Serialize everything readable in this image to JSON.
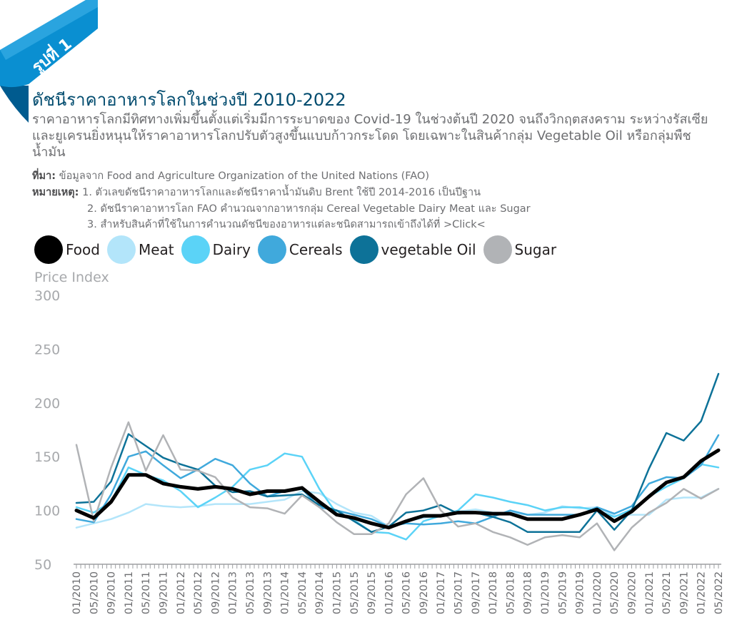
{
  "badge": "รูปที่ 1",
  "title": "ดัชนีราคาอาหารโลกในช่วงปี 2010-2022",
  "subtitle": "ราคาอาหารโลกมีทิศทางเพิ่มขึ้นตั้งแต่เริ่มมีการระบาดของ Covid-19 ในช่วงต้นปี 2020 จนถึงวิกฤตสงคราม ระหว่างรัสเซียและยูเครนยิ่งหนุนให้ราคาอาหารโลกปรับตัวสูงขึ้นแบบก้าวกระโดด โดยเฉพาะในสินค้ากลุ่ม Vegetable Oil หรือกลุ่มพืชน้ำมัน",
  "source_label": "ที่มา:",
  "source_text": " ข้อมูลจาก Food and Agriculture Organization of the United Nations (FAO)",
  "notes_label": "หมายเหตุ:",
  "note1": " 1. ตัวเลขดัชนีราคาอาหารโลกและดัชนีราคาน้ำมันดิบ Brent ใช้ปี 2014-2016 เป็นปีฐาน",
  "note2": "2. ดัชนีราคาอาหารโลก FAO คำนวณจากอาหารกลุ่ม Cereal Vegetable Dairy Meat และ Sugar",
  "note3": "3. สำหรับสินค้าที่ใช้ในการคำนวณดัชนีของอาหารแต่ละชนิดสามารถเข้าถึงได้ที่ >Click<",
  "colors": {
    "ribbon": "#0a8fd1",
    "ribbon_dark": "#006aa3",
    "axis": "#9d9fa2"
  },
  "chart_data": {
    "type": "line",
    "ylabel": "Price Index",
    "ylim": [
      50,
      300
    ],
    "yticks": [
      50,
      100,
      150,
      200,
      250,
      300
    ],
    "x": [
      "01/2010",
      "05/2010",
      "09/2010",
      "01/2011",
      "05/2011",
      "09/2011",
      "01/2012",
      "05/2012",
      "09/2012",
      "01/2013",
      "05/2013",
      "09/2013",
      "01/2014",
      "05/2014",
      "09/2014",
      "01/2015",
      "05/2015",
      "09/2015",
      "01/2016",
      "05/2016",
      "09/2016",
      "01/2017",
      "05/2017",
      "09/2017",
      "01/2018",
      "05/2018",
      "09/2018",
      "01/2019",
      "05/2019",
      "09/2019",
      "01/2020",
      "05/2020",
      "09/2020",
      "01/2021",
      "05/2021",
      "09/2021",
      "01/2022",
      "05/2022"
    ],
    "grid": false,
    "legend": "top",
    "series": [
      {
        "name": "Food",
        "color": "#000000",
        "width": 5,
        "values": [
          100,
          93,
          108,
          133,
          133,
          125,
          122,
          120,
          122,
          120,
          115,
          118,
          118,
          121,
          108,
          96,
          93,
          88,
          84,
          90,
          95,
          95,
          98,
          98,
          97,
          97,
          92,
          92,
          92,
          96,
          101,
          90,
          99,
          113,
          126,
          131,
          146,
          156
        ]
      },
      {
        "name": "Meat",
        "color": "#b3e5fa",
        "width": 2.5,
        "values": [
          84,
          88,
          92,
          98,
          106,
          104,
          103,
          104,
          106,
          106,
          106,
          108,
          110,
          118,
          116,
          106,
          98,
          95,
          85,
          90,
          93,
          96,
          99,
          101,
          98,
          98,
          96,
          98,
          104,
          102,
          103,
          95,
          96,
          96,
          110,
          112,
          112,
          120
        ]
      },
      {
        "name": "Dairy",
        "color": "#5bd3f7",
        "width": 2.5,
        "values": [
          103,
          98,
          108,
          140,
          133,
          128,
          118,
          103,
          112,
          122,
          138,
          142,
          153,
          150,
          120,
          97,
          91,
          80,
          79,
          73,
          90,
          95,
          100,
          115,
          112,
          108,
          105,
          100,
          103,
          103,
          100,
          94,
          101,
          113,
          122,
          130,
          143,
          140
        ]
      },
      {
        "name": "Cereals",
        "color": "#40a9dc",
        "width": 2.5,
        "values": [
          92,
          89,
          115,
          150,
          155,
          142,
          130,
          138,
          148,
          142,
          125,
          113,
          118,
          120,
          103,
          100,
          96,
          92,
          85,
          88,
          87,
          88,
          90,
          88,
          94,
          100,
          96,
          96,
          96,
          96,
          103,
          97,
          104,
          125,
          131,
          130,
          142,
          170
        ]
      },
      {
        "name": "vegetable Oil",
        "color": "#0d7298",
        "width": 2.5,
        "values": [
          107,
          108,
          127,
          171,
          160,
          149,
          143,
          138,
          123,
          117,
          118,
          113,
          114,
          115,
          105,
          100,
          90,
          80,
          85,
          98,
          100,
          105,
          97,
          98,
          94,
          89,
          80,
          80,
          80,
          80,
          100,
          82,
          100,
          139,
          172,
          165,
          183,
          227
        ]
      },
      {
        "name": "Sugar",
        "color": "#b1b3b6",
        "width": 2.5,
        "values": [
          161,
          90,
          140,
          182,
          137,
          170,
          138,
          137,
          131,
          112,
          103,
          102,
          97,
          114,
          103,
          89,
          78,
          78,
          88,
          115,
          130,
          100,
          85,
          88,
          80,
          75,
          68,
          75,
          77,
          75,
          88,
          63,
          84,
          98,
          107,
          120,
          111,
          120
        ]
      }
    ]
  }
}
